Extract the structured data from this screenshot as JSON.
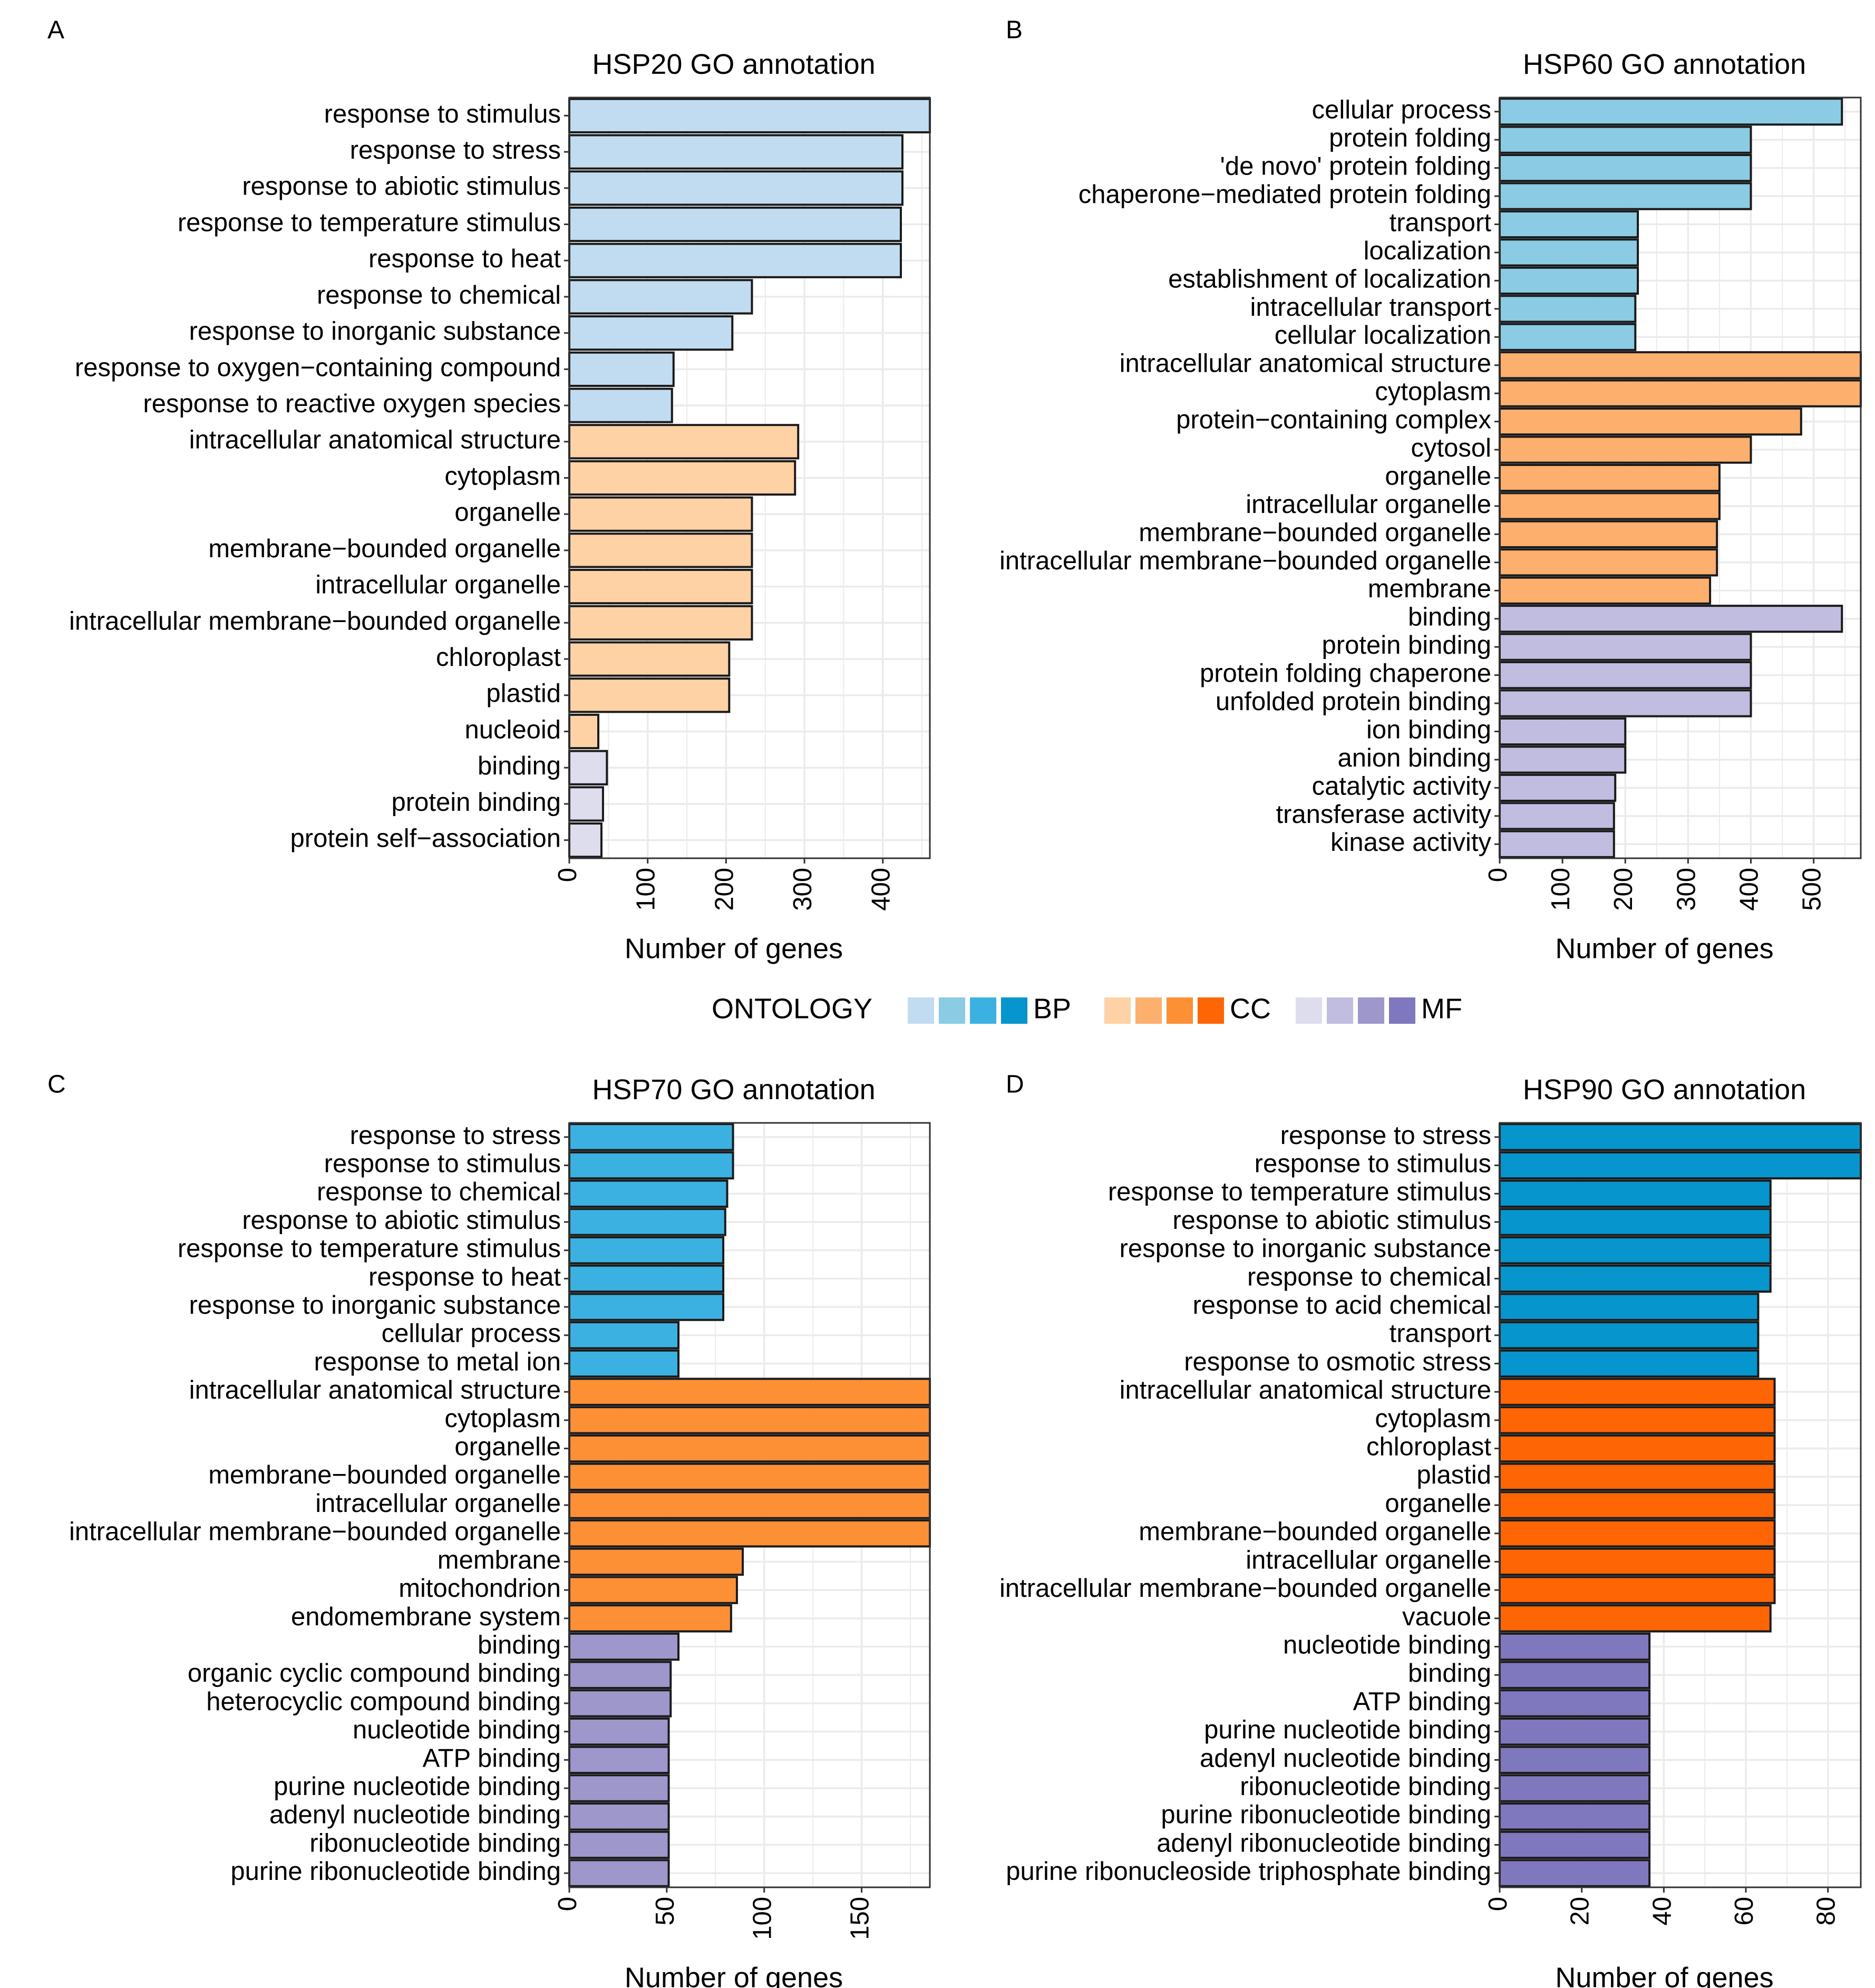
{
  "legend": {
    "title": "ONTOLOGY",
    "groups": [
      {
        "label": "BP",
        "colors": [
          "#c1dcf0",
          "#8ccbe4",
          "#3ab1e0",
          "#0795cd"
        ]
      },
      {
        "label": "CC",
        "colors": [
          "#ffd2a5",
          "#fdb06e",
          "#fd8f35",
          "#fe6505"
        ]
      },
      {
        "label": "MF",
        "colors": [
          "#dedded",
          "#c0bde0",
          "#9e97cc",
          "#7f78be"
        ]
      }
    ]
  },
  "chart_data": [
    {
      "panel": "A",
      "type": "bar",
      "orientation": "horizontal",
      "title": "HSP20 GO annotation",
      "xlabel": "Number of genes",
      "xlim": [
        0,
        460
      ],
      "xticks": [
        0,
        100,
        200,
        300,
        400
      ],
      "colors": {
        "BP": "#c1dcf0",
        "CC": "#ffd2a5",
        "MF": "#dedded"
      },
      "bars": [
        {
          "label": "response to stimulus",
          "value": 460,
          "ontology": "BP"
        },
        {
          "label": "response to stress",
          "value": 425,
          "ontology": "BP"
        },
        {
          "label": "response to abiotic stimulus",
          "value": 425,
          "ontology": "BP"
        },
        {
          "label": "response to temperature stimulus",
          "value": 423,
          "ontology": "BP"
        },
        {
          "label": "response to heat",
          "value": 423,
          "ontology": "BP"
        },
        {
          "label": "response to chemical",
          "value": 233,
          "ontology": "BP"
        },
        {
          "label": "response to inorganic substance",
          "value": 208,
          "ontology": "BP"
        },
        {
          "label": "response to oxygen−containing compound",
          "value": 133,
          "ontology": "BP"
        },
        {
          "label": "response to reactive oxygen species",
          "value": 131,
          "ontology": "BP"
        },
        {
          "label": "intracellular anatomical structure",
          "value": 292,
          "ontology": "CC"
        },
        {
          "label": "cytoplasm",
          "value": 288,
          "ontology": "CC"
        },
        {
          "label": "organelle",
          "value": 233,
          "ontology": "CC"
        },
        {
          "label": "membrane−bounded organelle",
          "value": 233,
          "ontology": "CC"
        },
        {
          "label": "intracellular organelle",
          "value": 233,
          "ontology": "CC"
        },
        {
          "label": "intracellular membrane−bounded organelle",
          "value": 233,
          "ontology": "CC"
        },
        {
          "label": "chloroplast",
          "value": 204,
          "ontology": "CC"
        },
        {
          "label": "plastid",
          "value": 204,
          "ontology": "CC"
        },
        {
          "label": "nucleoid",
          "value": 37,
          "ontology": "CC"
        },
        {
          "label": "binding",
          "value": 48,
          "ontology": "MF"
        },
        {
          "label": "protein binding",
          "value": 43,
          "ontology": "MF"
        },
        {
          "label": "protein self−association",
          "value": 41,
          "ontology": "MF"
        }
      ]
    },
    {
      "panel": "B",
      "type": "bar",
      "orientation": "horizontal",
      "title": "HSP60 GO annotation",
      "xlabel": "Number of genes",
      "xlim": [
        0,
        575
      ],
      "xticks": [
        0,
        100,
        200,
        300,
        400,
        500
      ],
      "colors": {
        "BP": "#8ccbe4",
        "CC": "#fdb06e",
        "MF": "#c0bde0"
      },
      "bars": [
        {
          "label": "cellular process",
          "value": 545,
          "ontology": "BP"
        },
        {
          "label": "protein folding",
          "value": 400,
          "ontology": "BP"
        },
        {
          "label": "'de novo' protein folding",
          "value": 400,
          "ontology": "BP"
        },
        {
          "label": "chaperone−mediated protein folding",
          "value": 400,
          "ontology": "BP"
        },
        {
          "label": "transport",
          "value": 220,
          "ontology": "BP"
        },
        {
          "label": "localization",
          "value": 220,
          "ontology": "BP"
        },
        {
          "label": "establishment of localization",
          "value": 220,
          "ontology": "BP"
        },
        {
          "label": "intracellular transport",
          "value": 216,
          "ontology": "BP"
        },
        {
          "label": "cellular localization",
          "value": 216,
          "ontology": "BP"
        },
        {
          "label": "intracellular anatomical structure",
          "value": 575,
          "ontology": "CC"
        },
        {
          "label": "cytoplasm",
          "value": 575,
          "ontology": "CC"
        },
        {
          "label": "protein−containing complex",
          "value": 480,
          "ontology": "CC"
        },
        {
          "label": "cytosol",
          "value": 400,
          "ontology": "CC"
        },
        {
          "label": "organelle",
          "value": 350,
          "ontology": "CC"
        },
        {
          "label": "intracellular organelle",
          "value": 350,
          "ontology": "CC"
        },
        {
          "label": "membrane−bounded organelle",
          "value": 346,
          "ontology": "CC"
        },
        {
          "label": "intracellular membrane−bounded organelle",
          "value": 346,
          "ontology": "CC"
        },
        {
          "label": "membrane",
          "value": 335,
          "ontology": "CC"
        },
        {
          "label": "binding",
          "value": 545,
          "ontology": "MF"
        },
        {
          "label": "protein binding",
          "value": 400,
          "ontology": "MF"
        },
        {
          "label": "protein folding chaperone",
          "value": 400,
          "ontology": "MF"
        },
        {
          "label": "unfolded protein binding",
          "value": 400,
          "ontology": "MF"
        },
        {
          "label": "ion binding",
          "value": 200,
          "ontology": "MF"
        },
        {
          "label": "anion binding",
          "value": 200,
          "ontology": "MF"
        },
        {
          "label": "catalytic activity",
          "value": 184,
          "ontology": "MF"
        },
        {
          "label": "transferase activity",
          "value": 182,
          "ontology": "MF"
        },
        {
          "label": "kinase activity",
          "value": 182,
          "ontology": "MF"
        }
      ]
    },
    {
      "panel": "C",
      "type": "bar",
      "orientation": "horizontal",
      "title": "HSP70 GO annotation",
      "xlabel": "Number of genes",
      "xlim": [
        0,
        185
      ],
      "xticks": [
        0,
        50,
        100,
        150
      ],
      "colors": {
        "BP": "#3ab1e0",
        "CC": "#fd8f35",
        "MF": "#9e97cc"
      },
      "bars": [
        {
          "label": "response to stress",
          "value": 84,
          "ontology": "BP"
        },
        {
          "label": "response to stimulus",
          "value": 84,
          "ontology": "BP"
        },
        {
          "label": "response to chemical",
          "value": 81,
          "ontology": "BP"
        },
        {
          "label": "response to abiotic stimulus",
          "value": 80,
          "ontology": "BP"
        },
        {
          "label": "response to temperature stimulus",
          "value": 79,
          "ontology": "BP"
        },
        {
          "label": "response to heat",
          "value": 79,
          "ontology": "BP"
        },
        {
          "label": "response to inorganic substance",
          "value": 79,
          "ontology": "BP"
        },
        {
          "label": "cellular process",
          "value": 56,
          "ontology": "BP"
        },
        {
          "label": "response to metal ion",
          "value": 56,
          "ontology": "BP"
        },
        {
          "label": "intracellular anatomical structure",
          "value": 185,
          "ontology": "CC"
        },
        {
          "label": "cytoplasm",
          "value": 185,
          "ontology": "CC"
        },
        {
          "label": "organelle",
          "value": 185,
          "ontology": "CC"
        },
        {
          "label": "membrane−bounded organelle",
          "value": 185,
          "ontology": "CC"
        },
        {
          "label": "intracellular organelle",
          "value": 185,
          "ontology": "CC"
        },
        {
          "label": "intracellular membrane−bounded organelle",
          "value": 185,
          "ontology": "CC"
        },
        {
          "label": "membrane",
          "value": 89,
          "ontology": "CC"
        },
        {
          "label": "mitochondrion",
          "value": 86,
          "ontology": "CC"
        },
        {
          "label": "endomembrane system",
          "value": 83,
          "ontology": "CC"
        },
        {
          "label": "binding",
          "value": 56,
          "ontology": "MF"
        },
        {
          "label": "organic cyclic compound binding",
          "value": 52,
          "ontology": "MF"
        },
        {
          "label": "heterocyclic compound binding",
          "value": 52,
          "ontology": "MF"
        },
        {
          "label": "nucleotide binding",
          "value": 51,
          "ontology": "MF"
        },
        {
          "label": "ATP binding",
          "value": 51,
          "ontology": "MF"
        },
        {
          "label": "purine nucleotide binding",
          "value": 51,
          "ontology": "MF"
        },
        {
          "label": "adenyl nucleotide binding",
          "value": 51,
          "ontology": "MF"
        },
        {
          "label": "ribonucleotide binding",
          "value": 51,
          "ontology": "MF"
        },
        {
          "label": "purine ribonucleotide binding",
          "value": 51,
          "ontology": "MF"
        }
      ]
    },
    {
      "panel": "D",
      "type": "bar",
      "orientation": "horizontal",
      "title": "HSP90 GO annotation",
      "xlabel": "Number of genes",
      "xlim": [
        0,
        88
      ],
      "xticks": [
        0,
        20,
        40,
        60,
        80
      ],
      "colors": {
        "BP": "#0795cd",
        "CC": "#fe6505",
        "MF": "#7f78be"
      },
      "bars": [
        {
          "label": "response to stress",
          "value": 88,
          "ontology": "BP"
        },
        {
          "label": "response to stimulus",
          "value": 88,
          "ontology": "BP"
        },
        {
          "label": "response to temperature stimulus",
          "value": 66,
          "ontology": "BP"
        },
        {
          "label": "response to abiotic stimulus",
          "value": 66,
          "ontology": "BP"
        },
        {
          "label": "response to inorganic substance",
          "value": 66,
          "ontology": "BP"
        },
        {
          "label": "response to chemical",
          "value": 66,
          "ontology": "BP"
        },
        {
          "label": "response to acid chemical",
          "value": 63,
          "ontology": "BP"
        },
        {
          "label": "transport",
          "value": 63,
          "ontology": "BP"
        },
        {
          "label": "response to osmotic stress",
          "value": 63,
          "ontology": "BP"
        },
        {
          "label": "intracellular anatomical structure",
          "value": 67,
          "ontology": "CC"
        },
        {
          "label": "cytoplasm",
          "value": 67,
          "ontology": "CC"
        },
        {
          "label": "chloroplast",
          "value": 67,
          "ontology": "CC"
        },
        {
          "label": "plastid",
          "value": 67,
          "ontology": "CC"
        },
        {
          "label": "organelle",
          "value": 67,
          "ontology": "CC"
        },
        {
          "label": "membrane−bounded organelle",
          "value": 67,
          "ontology": "CC"
        },
        {
          "label": "intracellular organelle",
          "value": 67,
          "ontology": "CC"
        },
        {
          "label": "intracellular membrane−bounded organelle",
          "value": 67,
          "ontology": "CC"
        },
        {
          "label": "vacuole",
          "value": 66,
          "ontology": "CC"
        },
        {
          "label": "nucleotide binding",
          "value": 36.5,
          "ontology": "MF"
        },
        {
          "label": "binding",
          "value": 36.5,
          "ontology": "MF"
        },
        {
          "label": "ATP binding",
          "value": 36.5,
          "ontology": "MF"
        },
        {
          "label": "purine nucleotide binding",
          "value": 36.5,
          "ontology": "MF"
        },
        {
          "label": "adenyl nucleotide binding",
          "value": 36.5,
          "ontology": "MF"
        },
        {
          "label": "ribonucleotide binding",
          "value": 36.5,
          "ontology": "MF"
        },
        {
          "label": "purine ribonucleotide binding",
          "value": 36.5,
          "ontology": "MF"
        },
        {
          "label": "adenyl ribonucleotide binding",
          "value": 36.5,
          "ontology": "MF"
        },
        {
          "label": "purine ribonucleoside triphosphate binding",
          "value": 36.5,
          "ontology": "MF"
        }
      ]
    }
  ]
}
